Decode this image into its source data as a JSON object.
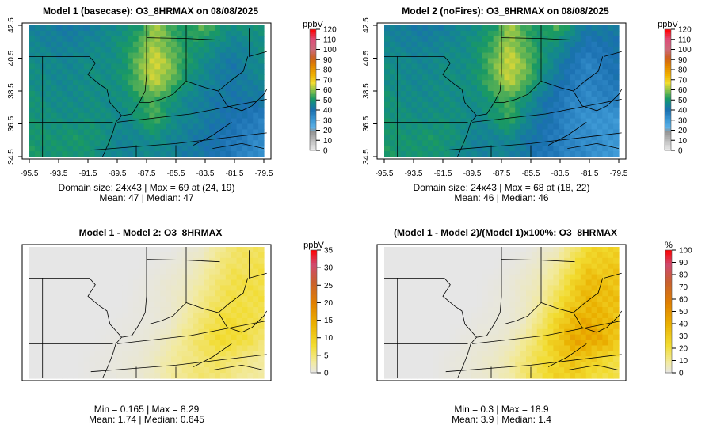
{
  "chart_data": [
    {
      "type": "heatmap",
      "title": "Model 1 (basecase): O3_8HRMAX on 08/08/2025",
      "unit": "ppbV",
      "xticks": [
        "-95.5",
        "-93.5",
        "-91.5",
        "-89.5",
        "-87.5",
        "-85.5",
        "-83.5",
        "-81.5",
        "-79.5"
      ],
      "yticks": [
        "34.5",
        "36.5",
        "38.5",
        "40.5",
        "42.5"
      ],
      "xlim": [
        -95.5,
        -79.5
      ],
      "ylim": [
        34.5,
        42.5
      ],
      "legend_ticks": [
        "0",
        "10",
        "20",
        "30",
        "40",
        "50",
        "60",
        "70",
        "80",
        "90",
        "100",
        "110",
        "120"
      ],
      "legend_range": [
        0,
        120
      ],
      "stats": [
        "Domain size: 24x43 | Max = 69 at (24, 19)",
        "Mean: 47 |  Median: 47"
      ],
      "grid": [
        [
          45,
          44,
          43,
          42,
          44,
          46,
          48,
          50,
          62,
          55,
          50,
          58,
          52,
          48,
          50,
          50
        ],
        [
          46,
          45,
          44,
          45,
          46,
          47,
          50,
          55,
          62,
          56,
          52,
          50,
          48,
          45,
          46,
          48
        ],
        [
          48,
          47,
          46,
          46,
          48,
          47,
          50,
          58,
          66,
          60,
          52,
          48,
          44,
          42,
          45,
          48
        ],
        [
          48,
          47,
          46,
          47,
          48,
          48,
          50,
          57,
          64,
          58,
          50,
          46,
          44,
          42,
          44,
          46
        ],
        [
          50,
          48,
          47,
          47,
          48,
          47,
          48,
          52,
          55,
          50,
          46,
          44,
          42,
          42,
          42,
          42
        ],
        [
          50,
          49,
          48,
          48,
          49,
          48,
          46,
          50,
          56,
          48,
          46,
          44,
          42,
          40,
          38,
          36
        ],
        [
          51,
          50,
          50,
          51,
          50,
          48,
          45,
          46,
          48,
          46,
          44,
          42,
          40,
          38,
          36,
          34
        ],
        [
          52,
          50,
          50,
          50,
          49,
          46,
          45,
          46,
          46,
          45,
          43,
          42,
          40,
          38,
          34,
          32
        ]
      ]
    },
    {
      "type": "heatmap",
      "title": "Model 2 (noFires): O3_8HRMAX on 08/08/2025",
      "unit": "ppbV",
      "xticks": [
        "-95.5",
        "-93.5",
        "-91.5",
        "-89.5",
        "-87.5",
        "-85.5",
        "-83.5",
        "-81.5",
        "-79.5"
      ],
      "yticks": [
        "34.5",
        "36.5",
        "38.5",
        "40.5",
        "42.5"
      ],
      "xlim": [
        -95.5,
        -79.5
      ],
      "ylim": [
        34.5,
        42.5
      ],
      "legend_ticks": [
        "0",
        "10",
        "20",
        "30",
        "40",
        "50",
        "60",
        "70",
        "80",
        "90",
        "100",
        "110",
        "120"
      ],
      "legend_range": [
        0,
        120
      ],
      "stats": [
        "Domain size: 24x43 | Max = 68 at (18, 22)",
        "Mean: 46 |  Median: 46"
      ],
      "derived": "model1 minus difference grid"
    },
    {
      "type": "heatmap",
      "title": "Model 1 - Model 2: O3_8HRMAX",
      "unit": "ppbV",
      "legend_ticks": [
        "0",
        "5",
        "10",
        "15",
        "20",
        "25",
        "30",
        "35"
      ],
      "legend_range": [
        0,
        35
      ],
      "stats": [
        "Min = 0.165 | Max = 8.29",
        "Mean: 1.74 |  Median: 0.645"
      ],
      "grid": [
        [
          0,
          0,
          0,
          0,
          0,
          0,
          0,
          0,
          0,
          0,
          0.5,
          1,
          3,
          5,
          6,
          6
        ],
        [
          0,
          0,
          0,
          0,
          0,
          0,
          0,
          0,
          0.2,
          0.5,
          1,
          2,
          4,
          6,
          6,
          7
        ],
        [
          0,
          0,
          0,
          0,
          0,
          0,
          0,
          0.2,
          0.5,
          1,
          1.5,
          3,
          5,
          7,
          7,
          7
        ],
        [
          0,
          0,
          0,
          0,
          0,
          0,
          0,
          0.3,
          0.5,
          1,
          2,
          4,
          6,
          7,
          7,
          7
        ],
        [
          0,
          0,
          0,
          0,
          0,
          0,
          0.2,
          0.3,
          0.5,
          1,
          3,
          5,
          7,
          8,
          7,
          6
        ],
        [
          0,
          0,
          0,
          0,
          0,
          0.2,
          0.3,
          0.5,
          1,
          2,
          4,
          6,
          8,
          8,
          7,
          5
        ],
        [
          0,
          0,
          0,
          0,
          0.2,
          0.3,
          0.5,
          0.8,
          1.5,
          3,
          4,
          5,
          6,
          5,
          4,
          3
        ],
        [
          0,
          0,
          0,
          0,
          0.2,
          0.3,
          0.5,
          0.8,
          1.5,
          3,
          4,
          5,
          5,
          4,
          3,
          3
        ]
      ]
    },
    {
      "type": "heatmap",
      "title": "(Model 1 - Model 2)/(Model 1)x100%: O3_8HRMAX",
      "unit": "%",
      "legend_ticks": [
        "0",
        "10",
        "20",
        "30",
        "40",
        "50",
        "60",
        "70",
        "80",
        "90",
        "100"
      ],
      "legend_range": [
        0,
        100
      ],
      "stats": [
        "Min = 0.3 | Max = 18.9",
        "Mean: 3.9 |  Median: 1.4"
      ],
      "derived": "difference / model1 x 100"
    }
  ],
  "colors": {
    "ppbv": [
      [
        0,
        "#ececec"
      ],
      [
        10,
        "#bdbdbd"
      ],
      [
        20,
        "#8e8e8e"
      ],
      [
        22,
        "#62b4e8"
      ],
      [
        30,
        "#3e9ad6"
      ],
      [
        40,
        "#1a6fb0"
      ],
      [
        47,
        "#138a8a"
      ],
      [
        52,
        "#1a9a62"
      ],
      [
        60,
        "#8cc34a"
      ],
      [
        67,
        "#f0dc30"
      ],
      [
        75,
        "#f0b000"
      ],
      [
        85,
        "#e08000"
      ],
      [
        92,
        "#cc6020"
      ],
      [
        100,
        "#cc6a7a"
      ],
      [
        110,
        "#dd4f7a"
      ],
      [
        120,
        "#ff0000"
      ]
    ],
    "diff": [
      [
        0,
        "#e6e6e6"
      ],
      [
        3,
        "#f2eaa0"
      ],
      [
        8,
        "#f2dc30"
      ],
      [
        14,
        "#eab000"
      ],
      [
        20,
        "#e08000"
      ],
      [
        26,
        "#c86030"
      ],
      [
        31,
        "#d04a70"
      ],
      [
        35,
        "#ff0000"
      ]
    ]
  }
}
